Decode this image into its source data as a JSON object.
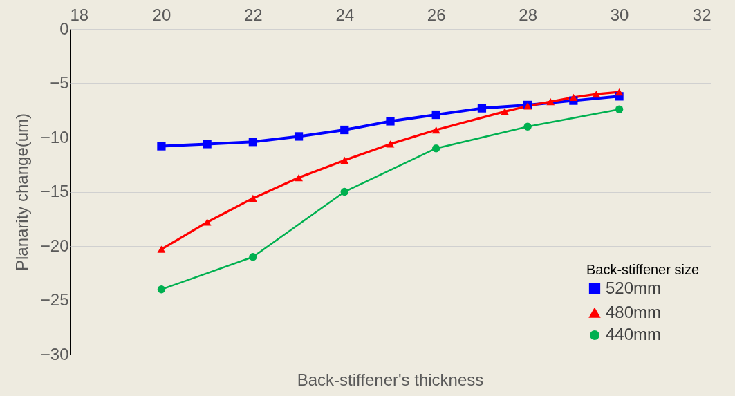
{
  "chart_data": {
    "type": "line",
    "xlabel": "Back-stiffener's thickness",
    "ylabel": "Planarity change(um)",
    "legend_title": "Back-stiffener size",
    "xlim": [
      18,
      32
    ],
    "xticks": [
      18,
      20,
      22,
      24,
      26,
      28,
      30,
      32
    ],
    "ylim": [
      -30,
      0
    ],
    "yticks": [
      -30,
      -25,
      -20,
      -15,
      -10,
      -5,
      0
    ],
    "grid": "y",
    "legend": "bottom right",
    "line_style": "solid",
    "series": [
      {
        "name": "520mm",
        "color": "#0000ff",
        "marker": "square",
        "x": [
          20,
          21,
          22,
          23,
          24,
          25,
          26,
          27,
          28,
          29,
          30
        ],
        "values": [
          -10.8,
          -10.6,
          -10.4,
          -9.9,
          -9.3,
          -8.5,
          -7.9,
          -7.3,
          -7.0,
          -6.6,
          -6.2
        ]
      },
      {
        "name": "480mm",
        "color": "#ff0000",
        "marker": "triangle",
        "x": [
          20,
          21,
          22,
          23,
          24,
          25,
          26,
          27.5,
          28,
          28.5,
          29,
          29.5,
          30
        ],
        "values": [
          -20.3,
          -17.8,
          -15.6,
          -13.7,
          -12.1,
          -10.6,
          -9.3,
          -7.6,
          -7.1,
          -6.7,
          -6.3,
          -6.0,
          -5.8
        ]
      },
      {
        "name": "440mm",
        "color": "#00b050",
        "marker": "circle",
        "x": [
          20,
          22,
          24,
          26,
          28,
          30
        ],
        "values": [
          -24.0,
          -21.0,
          -15.0,
          -11.0,
          -9.0,
          -7.4
        ]
      }
    ]
  }
}
